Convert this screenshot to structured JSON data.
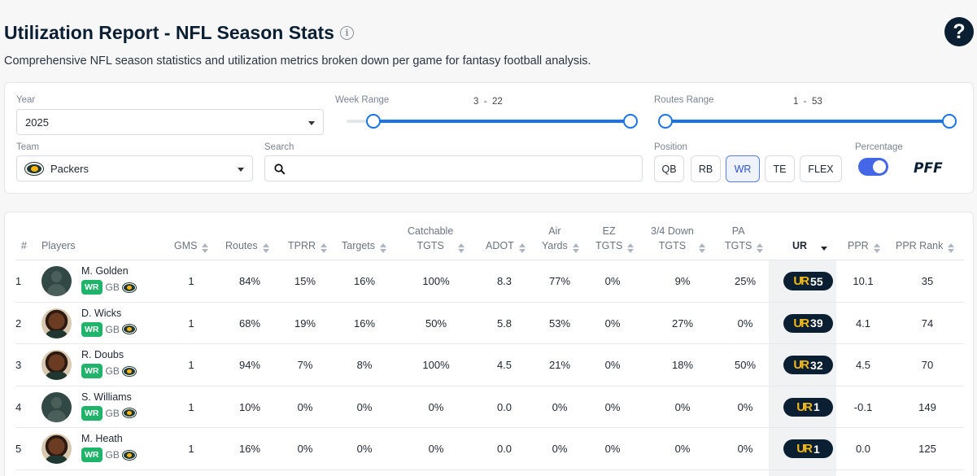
{
  "header": {
    "title": "Utilization Report - NFL Season Stats",
    "subtitle": "Comprehensive NFL season statistics and utilization metrics broken down per game for fantasy football analysis.",
    "help_label": "?"
  },
  "filters": {
    "year": {
      "label": "Year",
      "value": "2025"
    },
    "team": {
      "label": "Team",
      "value": "Packers"
    },
    "search": {
      "label": "Search",
      "placeholder": ""
    },
    "week_range": {
      "label": "Week Range",
      "min": "3",
      "max": "22",
      "sep": "-"
    },
    "routes_range": {
      "label": "Routes Range",
      "min": "1",
      "max": "53",
      "sep": "-"
    },
    "position": {
      "label": "Position",
      "options": [
        "QB",
        "RB",
        "WR",
        "TE",
        "FLEX"
      ],
      "selected": "WR"
    },
    "percentage": {
      "label": "Percentage",
      "on": true
    },
    "brand": "PFF"
  },
  "table": {
    "columns": {
      "rank": "#",
      "players": "Players",
      "gms": "GMS",
      "routes": "Routes",
      "tprr": "TPRR",
      "targets": "Targets",
      "catchable_1": "Catchable",
      "catchable_2": "TGTS",
      "adot": "ADOT",
      "air_1": "Air",
      "air_2": "Yards",
      "ez_1": "EZ",
      "ez_2": "TGTS",
      "down_1": "3/4 Down",
      "down_2": "TGTS",
      "pa_1": "PA",
      "pa_2": "TGTS",
      "ur": "UR",
      "ppr": "PPR",
      "ppr_rank": "PPR Rank"
    },
    "ur_logo": "UR",
    "rows": [
      {
        "rank": "1",
        "name": "M. Golden",
        "pos": "WR",
        "team": "GB",
        "gms": "1",
        "routes": "84%",
        "tprr": "15%",
        "targets": "16%",
        "catchable": "100%",
        "adot": "8.3",
        "air": "77%",
        "ez": "0%",
        "down": "9%",
        "pa": "25%",
        "ur": "55",
        "ppr": "10.1",
        "ppr_rank": "35"
      },
      {
        "rank": "2",
        "name": "D. Wicks",
        "pos": "WR",
        "team": "GB",
        "gms": "1",
        "routes": "68%",
        "tprr": "19%",
        "targets": "16%",
        "catchable": "50%",
        "adot": "5.8",
        "air": "53%",
        "ez": "0%",
        "down": "27%",
        "pa": "0%",
        "ur": "39",
        "ppr": "4.1",
        "ppr_rank": "74"
      },
      {
        "rank": "3",
        "name": "R. Doubs",
        "pos": "WR",
        "team": "GB",
        "gms": "1",
        "routes": "94%",
        "tprr": "7%",
        "targets": "8%",
        "catchable": "100%",
        "adot": "4.5",
        "air": "21%",
        "ez": "0%",
        "down": "18%",
        "pa": "50%",
        "ur": "32",
        "ppr": "4.5",
        "ppr_rank": "70"
      },
      {
        "rank": "4",
        "name": "S. Williams",
        "pos": "WR",
        "team": "GB",
        "gms": "1",
        "routes": "10%",
        "tprr": "0%",
        "targets": "0%",
        "catchable": "0%",
        "adot": "0.0",
        "air": "0%",
        "ez": "0%",
        "down": "0%",
        "pa": "0%",
        "ur": "1",
        "ppr": "-0.1",
        "ppr_rank": "149"
      },
      {
        "rank": "5",
        "name": "M. Heath",
        "pos": "WR",
        "team": "GB",
        "gms": "1",
        "routes": "16%",
        "tprr": "0%",
        "targets": "0%",
        "catchable": "0%",
        "adot": "0.0",
        "air": "0%",
        "ez": "0%",
        "down": "0%",
        "pa": "0%",
        "ur": "1",
        "ppr": "0.0",
        "ppr_rank": "125"
      }
    ]
  }
}
